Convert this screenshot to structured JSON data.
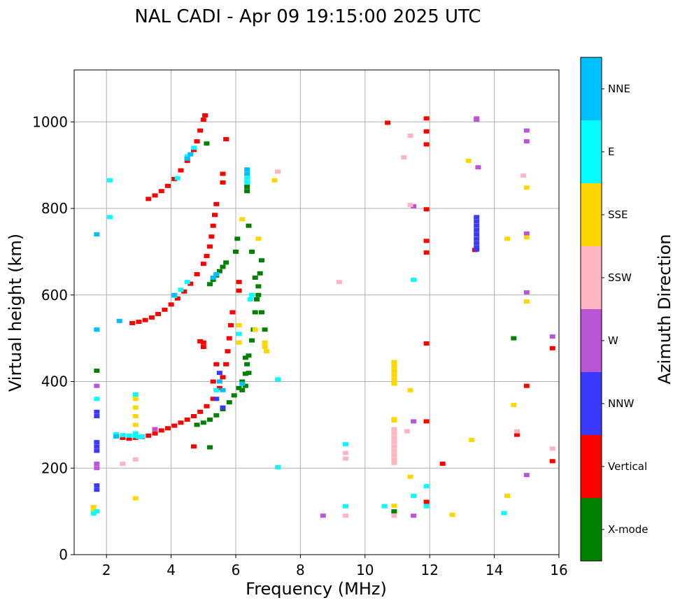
{
  "chart_data": {
    "type": "scatter",
    "title": "NAL CADI - Apr 09 19:15:00 2025 UTC",
    "xlabel": "Frequency (MHz)",
    "ylabel": "Virtual height (km)",
    "xlim": [
      1,
      16
    ],
    "ylim": [
      0,
      1120
    ],
    "xticks": [
      2,
      4,
      6,
      8,
      10,
      12,
      14,
      16
    ],
    "yticks": [
      0,
      200,
      400,
      600,
      800,
      1000
    ],
    "grid": true,
    "colorbar": {
      "label": "Azimuth Direction",
      "categories": [
        {
          "name": "X-mode",
          "color": "#008000"
        },
        {
          "name": "Vertical",
          "color": "#ff0000"
        },
        {
          "name": "NNW",
          "color": "#3a3aff"
        },
        {
          "name": "W",
          "color": "#b955d6"
        },
        {
          "name": "SSW",
          "color": "#ffb6c1"
        },
        {
          "name": "SSE",
          "color": "#ffd700"
        },
        {
          "name": "E",
          "color": "#00ffff"
        },
        {
          "name": "NNE",
          "color": "#00bfff"
        }
      ]
    },
    "series": [
      {
        "name": "Vertical",
        "color": "#ff0000",
        "points": [
          [
            2.5,
            270
          ],
          [
            2.7,
            268
          ],
          [
            2.9,
            270
          ],
          [
            3.1,
            272
          ],
          [
            3.3,
            275
          ],
          [
            3.5,
            280
          ],
          [
            3.7,
            287
          ],
          [
            3.9,
            292
          ],
          [
            4.1,
            298
          ],
          [
            4.3,
            305
          ],
          [
            4.5,
            312
          ],
          [
            4.7,
            320
          ],
          [
            4.9,
            330
          ],
          [
            5.1,
            343
          ],
          [
            5.3,
            360
          ],
          [
            5.5,
            385
          ],
          [
            5.6,
            410
          ],
          [
            5.7,
            440
          ],
          [
            5.75,
            470
          ],
          [
            5.8,
            500
          ],
          [
            5.85,
            530
          ],
          [
            5.9,
            560
          ],
          [
            2.8,
            535
          ],
          [
            3.0,
            538
          ],
          [
            3.2,
            542
          ],
          [
            3.4,
            548
          ],
          [
            3.6,
            556
          ],
          [
            3.8,
            566
          ],
          [
            4.0,
            578
          ],
          [
            4.2,
            592
          ],
          [
            4.4,
            608
          ],
          [
            4.6,
            626
          ],
          [
            4.8,
            648
          ],
          [
            5.0,
            672
          ],
          [
            5.1,
            690
          ],
          [
            5.2,
            712
          ],
          [
            5.25,
            735
          ],
          [
            5.3,
            760
          ],
          [
            5.35,
            785
          ],
          [
            5.4,
            810
          ],
          [
            3.3,
            822
          ],
          [
            3.5,
            830
          ],
          [
            3.7,
            840
          ],
          [
            3.9,
            852
          ],
          [
            4.1,
            868
          ],
          [
            4.3,
            888
          ],
          [
            4.5,
            910
          ],
          [
            4.7,
            935
          ],
          [
            4.8,
            955
          ],
          [
            4.9,
            980
          ],
          [
            5.0,
            1005
          ],
          [
            5.05,
            1015
          ],
          [
            4.9,
            493
          ],
          [
            5.0,
            490
          ],
          [
            5.0,
            480
          ],
          [
            5.6,
            880
          ],
          [
            5.6,
            860
          ],
          [
            5.7,
            960
          ],
          [
            5.4,
            440
          ],
          [
            5.3,
            400
          ],
          [
            11.9,
            1008
          ],
          [
            11.9,
            978
          ],
          [
            11.9,
            948
          ],
          [
            11.9,
            798
          ],
          [
            11.9,
            725
          ],
          [
            11.9,
            698
          ],
          [
            11.9,
            488
          ],
          [
            11.9,
            308
          ],
          [
            11.9,
            122
          ],
          [
            12.4,
            210
          ],
          [
            13.4,
            704
          ],
          [
            14.7,
            282
          ],
          [
            14.7,
            277
          ],
          [
            15.0,
            390
          ],
          [
            15.8,
            477
          ],
          [
            15.8,
            216
          ],
          [
            10.7,
            998
          ],
          [
            6.1,
            630
          ],
          [
            6.1,
            610
          ],
          [
            4.7,
            250
          ]
        ]
      },
      {
        "name": "X-mode",
        "color": "#008000",
        "points": [
          [
            4.8,
            300
          ],
          [
            5.0,
            305
          ],
          [
            5.2,
            312
          ],
          [
            5.4,
            322
          ],
          [
            5.6,
            336
          ],
          [
            5.8,
            352
          ],
          [
            5.95,
            368
          ],
          [
            6.1,
            385
          ],
          [
            6.2,
            400
          ],
          [
            6.3,
            418
          ],
          [
            6.35,
            440
          ],
          [
            6.4,
            460
          ],
          [
            6.5,
            495
          ],
          [
            6.55,
            520
          ],
          [
            6.6,
            560
          ],
          [
            6.65,
            590
          ],
          [
            6.7,
            620
          ],
          [
            6.75,
            650
          ],
          [
            6.8,
            680
          ],
          [
            5.2,
            625
          ],
          [
            5.3,
            635
          ],
          [
            5.4,
            645
          ],
          [
            5.5,
            655
          ],
          [
            5.6,
            665
          ],
          [
            5.7,
            675
          ],
          [
            6.0,
            700
          ],
          [
            6.05,
            730
          ],
          [
            6.35,
            850
          ],
          [
            6.35,
            840
          ],
          [
            6.4,
            760
          ],
          [
            6.5,
            700
          ],
          [
            6.6,
            640
          ],
          [
            6.7,
            600
          ],
          [
            6.8,
            560
          ],
          [
            6.9,
            520
          ],
          [
            6.3,
            455
          ],
          [
            6.4,
            420
          ],
          [
            6.2,
            380
          ],
          [
            6.3,
            390
          ],
          [
            5.1,
            950
          ],
          [
            5.2,
            248
          ],
          [
            14.6,
            500
          ],
          [
            10.9,
            100
          ],
          [
            1.7,
            425
          ]
        ]
      },
      {
        "name": "NNW",
        "color": "#3a3aff",
        "points": [
          [
            13.45,
            780
          ],
          [
            13.45,
            770
          ],
          [
            13.45,
            760
          ],
          [
            13.45,
            750
          ],
          [
            13.45,
            740
          ],
          [
            13.45,
            730
          ],
          [
            13.45,
            720
          ],
          [
            13.45,
            710
          ],
          [
            13.45,
            705
          ],
          [
            1.7,
            260
          ],
          [
            1.7,
            250
          ],
          [
            1.7,
            240
          ],
          [
            1.7,
            330
          ],
          [
            1.7,
            320
          ],
          [
            1.7,
            160
          ],
          [
            1.7,
            150
          ],
          [
            5.5,
            420
          ],
          [
            5.4,
            360
          ],
          [
            5.6,
            340
          ]
        ]
      },
      {
        "name": "W",
        "color": "#b955d6",
        "points": [
          [
            13.45,
            1008
          ],
          [
            13.45,
            1005
          ],
          [
            15.0,
            980
          ],
          [
            15.0,
            955
          ],
          [
            15.0,
            742
          ],
          [
            15.0,
            606
          ],
          [
            15.8,
            504
          ],
          [
            15.0,
            184
          ],
          [
            11.5,
            308
          ],
          [
            11.5,
            90
          ],
          [
            8.7,
            90
          ],
          [
            11.5,
            805
          ],
          [
            13.5,
            895
          ],
          [
            1.7,
            390
          ],
          [
            1.7,
            200
          ],
          [
            1.7,
            210
          ],
          [
            3.5,
            290
          ]
        ]
      },
      {
        "name": "SSW",
        "color": "#ffb6c1",
        "points": [
          [
            10.9,
            290
          ],
          [
            10.9,
            280
          ],
          [
            10.9,
            270
          ],
          [
            10.9,
            260
          ],
          [
            10.9,
            250
          ],
          [
            10.9,
            240
          ],
          [
            10.9,
            230
          ],
          [
            10.9,
            220
          ],
          [
            10.9,
            212
          ],
          [
            15.8,
            245
          ],
          [
            14.9,
            876
          ],
          [
            11.4,
            968
          ],
          [
            11.2,
            918
          ],
          [
            11.4,
            808
          ],
          [
            9.2,
            630
          ],
          [
            9.4,
            235
          ],
          [
            9.4,
            222
          ],
          [
            9.4,
            90
          ],
          [
            10.9,
            90
          ],
          [
            11.3,
            285
          ],
          [
            14.7,
            285
          ],
          [
            7.3,
            885
          ],
          [
            2.9,
            220
          ],
          [
            2.5,
            210
          ]
        ]
      },
      {
        "name": "SSE",
        "color": "#ffd700",
        "points": [
          [
            10.9,
            445
          ],
          [
            10.9,
            435
          ],
          [
            10.9,
            425
          ],
          [
            10.9,
            415
          ],
          [
            10.9,
            405
          ],
          [
            10.9,
            395
          ],
          [
            10.9,
            313
          ],
          [
            10.9,
            310
          ],
          [
            10.9,
            113
          ],
          [
            15.0,
            848
          ],
          [
            15.0,
            733
          ],
          [
            15.0,
            585
          ],
          [
            14.4,
            730
          ],
          [
            14.6,
            346
          ],
          [
            13.2,
            910
          ],
          [
            13.3,
            265
          ],
          [
            12.7,
            92
          ],
          [
            14.4,
            136
          ],
          [
            11.4,
            380
          ],
          [
            11.4,
            180
          ],
          [
            6.9,
            490
          ],
          [
            6.9,
            480
          ],
          [
            6.95,
            470
          ],
          [
            6.7,
            730
          ],
          [
            6.6,
            520
          ],
          [
            6.1,
            510
          ],
          [
            6.1,
            490
          ],
          [
            6.1,
            530
          ],
          [
            2.9,
            360
          ],
          [
            2.9,
            340
          ],
          [
            2.9,
            320
          ],
          [
            2.9,
            300
          ],
          [
            2.9,
            130
          ],
          [
            1.6,
            110
          ],
          [
            1.6,
            100
          ],
          [
            7.2,
            865
          ],
          [
            6.2,
            775
          ]
        ]
      },
      {
        "name": "E",
        "color": "#00ffff",
        "points": [
          [
            2.3,
            278
          ],
          [
            2.5,
            276
          ],
          [
            2.7,
            275
          ],
          [
            2.9,
            274
          ],
          [
            3.0,
            272
          ],
          [
            3.1,
            273
          ],
          [
            4.1,
            598
          ],
          [
            4.3,
            612
          ],
          [
            4.5,
            630
          ],
          [
            4.2,
            870
          ],
          [
            4.5,
            920
          ],
          [
            4.7,
            940
          ],
          [
            6.35,
            880
          ],
          [
            6.35,
            870
          ],
          [
            6.35,
            860
          ],
          [
            6.45,
            590
          ],
          [
            6.5,
            600
          ],
          [
            6.1,
            510
          ],
          [
            5.4,
            380
          ],
          [
            9.4,
            112
          ],
          [
            9.4,
            255
          ],
          [
            10.6,
            112
          ],
          [
            11.5,
            635
          ],
          [
            11.5,
            136
          ],
          [
            11.9,
            158
          ],
          [
            11.9,
            112
          ],
          [
            14.3,
            96
          ],
          [
            1.6,
            95
          ],
          [
            1.7,
            100
          ],
          [
            1.7,
            360
          ],
          [
            1.7,
            520
          ],
          [
            2.1,
            865
          ],
          [
            2.1,
            780
          ],
          [
            7.3,
            405
          ],
          [
            7.3,
            202
          ],
          [
            2.9,
            370
          ],
          [
            2.9,
            280
          ]
        ]
      },
      {
        "name": "NNE",
        "color": "#00bfff",
        "points": [
          [
            6.35,
            890
          ],
          [
            6.35,
            880
          ],
          [
            4.6,
            925
          ],
          [
            4.5,
            915
          ],
          [
            5.3,
            640
          ],
          [
            5.4,
            648
          ],
          [
            4.1,
            600
          ],
          [
            2.4,
            540
          ],
          [
            2.3,
            273
          ],
          [
            1.7,
            520
          ],
          [
            1.7,
            740
          ],
          [
            5.6,
            380
          ],
          [
            5.5,
            400
          ],
          [
            6.2,
            395
          ]
        ]
      }
    ]
  }
}
